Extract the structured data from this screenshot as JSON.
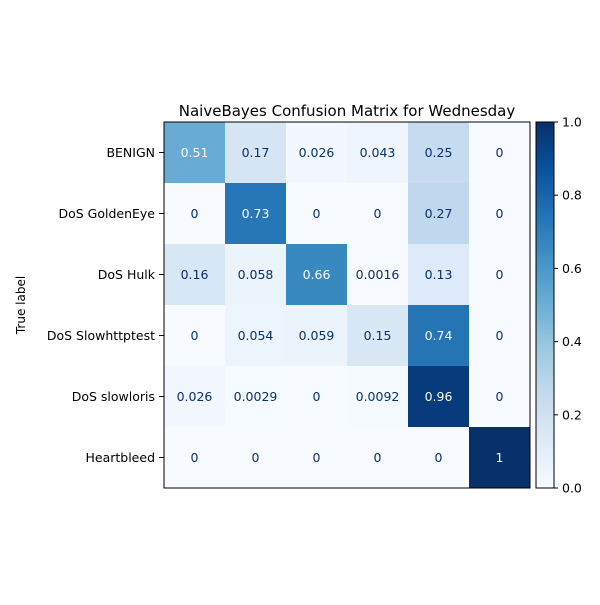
{
  "chart_data": {
    "type": "heatmap",
    "title": "NaiveBayes Confusion Matrix for Wednesday",
    "xlabel": "",
    "ylabel": "True label",
    "row_labels": [
      "BENIGN",
      "DoS GoldenEye",
      "DoS Hulk",
      "DoS Slowhttptest",
      "DoS slowloris",
      "Heartbleed"
    ],
    "column_labels": [],
    "values": [
      [
        0.51,
        0.17,
        0.026,
        0.043,
        0.25,
        0
      ],
      [
        0,
        0.73,
        0,
        0,
        0.27,
        0
      ],
      [
        0.16,
        0.058,
        0.66,
        0.0016,
        0.13,
        0
      ],
      [
        0,
        0.054,
        0.059,
        0.15,
        0.74,
        0
      ],
      [
        0.026,
        0.0029,
        0,
        0.0092,
        0.96,
        0
      ],
      [
        0,
        0,
        0,
        0,
        0,
        1
      ]
    ],
    "value_labels": [
      [
        "0.51",
        "0.17",
        "0.026",
        "0.043",
        "0.25",
        "0"
      ],
      [
        "0",
        "0.73",
        "0",
        "0",
        "0.27",
        "0"
      ],
      [
        "0.16",
        "0.058",
        "0.66",
        "0.0016",
        "0.13",
        "0"
      ],
      [
        "0",
        "0.054",
        "0.059",
        "0.15",
        "0.74",
        "0"
      ],
      [
        "0.026",
        "0.0029",
        "0",
        "0.0092",
        "0.96",
        "0"
      ],
      [
        "0",
        "0",
        "0",
        "0",
        "0",
        "1"
      ]
    ],
    "colormap": "Blues",
    "colorbar": {
      "range": [
        0,
        1
      ],
      "ticks": [
        0.0,
        0.2,
        0.4,
        0.6,
        0.8,
        1.0
      ],
      "tick_labels": [
        "0.0",
        "0.2",
        "0.4",
        "0.6",
        "0.8",
        "1.0"
      ]
    },
    "grid": false
  }
}
